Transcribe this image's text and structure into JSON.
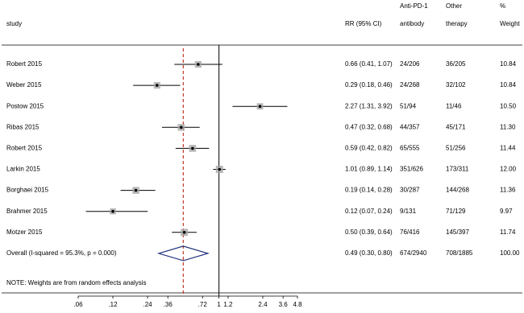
{
  "chart_data": {
    "type": "forest",
    "headers": {
      "study": "study",
      "ci": "RR (95% CI)",
      "anti": [
        "Anti-PD-1",
        "antibody"
      ],
      "other": [
        "Other",
        "therapy"
      ],
      "weight": [
        "%",
        "Weight"
      ]
    },
    "categories": [
      "Robert 2015",
      "Weber 2015",
      "Postow 2015",
      "Ribas 2015",
      "Robert 2015",
      "Larkin 2015",
      "Borghaei 2015",
      "Brahmer 2015",
      "Motzer 2015"
    ],
    "values": [
      0.66,
      0.29,
      2.27,
      0.47,
      0.59,
      1.01,
      0.19,
      0.12,
      0.5
    ],
    "lower": [
      0.41,
      0.18,
      1.31,
      0.32,
      0.42,
      0.89,
      0.14,
      0.07,
      0.39
    ],
    "upper": [
      1.07,
      0.46,
      3.92,
      0.68,
      0.82,
      1.14,
      0.28,
      0.24,
      0.64
    ],
    "ci_labels": [
      "0.66 (0.41, 1.07)",
      "0.29 (0.18, 0.46)",
      "2.27 (1.31, 3.92)",
      "0.47 (0.32, 0.68)",
      "0.59 (0.42, 0.82)",
      "1.01 (0.89, 1.14)",
      "0.19 (0.14, 0.28)",
      "0.12 (0.07, 0.24)",
      "0.50 (0.39, 0.64)"
    ],
    "anti_pd1": [
      "24/206",
      "24/268",
      "51/94",
      "44/357",
      "65/555",
      "351/626",
      "30/287",
      "9/131",
      "76/416"
    ],
    "other_therapy": [
      "36/205",
      "32/102",
      "11/46",
      "45/171",
      "51/256",
      "173/311",
      "144/268",
      "71/129",
      "145/397"
    ],
    "weights": [
      10.84,
      10.84,
      10.5,
      11.3,
      11.44,
      12,
      11.36,
      9.97,
      11.74
    ],
    "weight_labels": [
      "10.84",
      "10.84",
      "10.50",
      "11.30",
      "11.44",
      "12.00",
      "11.36",
      "9.97",
      "11.74"
    ],
    "overall": {
      "label": "Overall  (I-squared = 95.3%, p = 0.000)",
      "value": 0.49,
      "lower": 0.3,
      "upper": 0.8,
      "ci_label": "0.49 (0.30, 0.80)",
      "anti": "674/2940",
      "other": "708/1885",
      "weight_label": "100.00"
    },
    "note": "NOTE: Weights are from random effects analysis",
    "log_scale": true,
    "null_line": 1,
    "xlim": [
      0.06,
      4.8
    ],
    "xticks": [
      {
        "value": 0.06,
        "label": ".06"
      },
      {
        "value": 0.12,
        "label": ".12"
      },
      {
        "value": 0.24,
        "label": ".24"
      },
      {
        "value": 0.36,
        "label": ".36"
      },
      {
        "value": 0.72,
        "label": ".72"
      },
      1,
      1.2,
      2.4,
      3.6,
      4.8
    ],
    "colors": {
      "box": "#a6a6a6",
      "diamond": "#1f2f7a",
      "overall_line": "#c0392b"
    }
  }
}
